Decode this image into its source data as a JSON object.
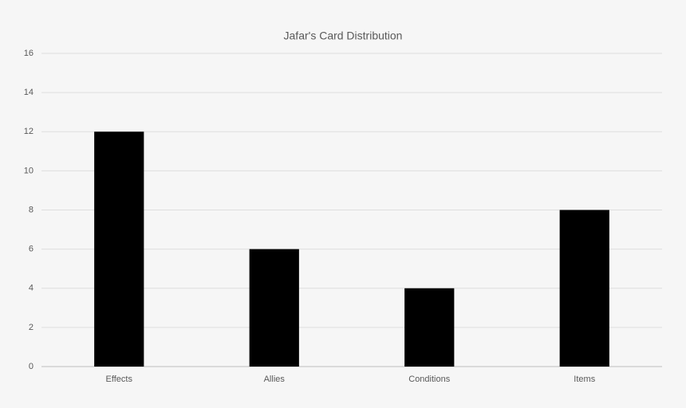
{
  "chart_data": {
    "type": "bar",
    "title": "Jafar's Card Distribution",
    "categories": [
      "Effects",
      "Allies",
      "Conditions",
      "Items"
    ],
    "values": [
      12,
      6,
      4,
      8
    ],
    "color": "#000000",
    "ylim": [
      0,
      16
    ],
    "yticks": [
      0,
      2,
      4,
      6,
      8,
      10,
      12,
      14,
      16
    ],
    "grid": true
  }
}
